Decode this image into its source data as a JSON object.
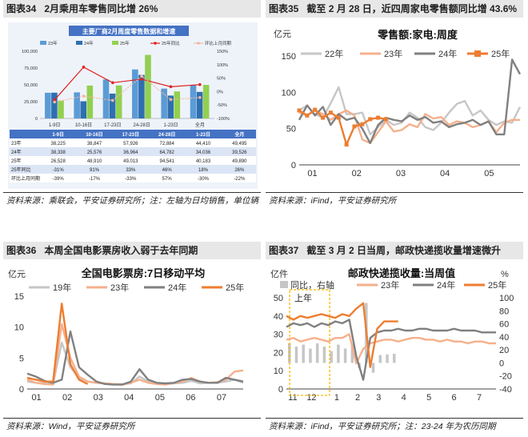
{
  "colors": {
    "y22": "#c6c6c6",
    "y23": "#f5b08c",
    "y24": "#808080",
    "y25": "#ed7d31",
    "y19": "#c6c6c6",
    "bar23": "#5b9bd5",
    "bar24": "#2f6fb0",
    "bar25": "#92d050",
    "line25": "#e02020",
    "lineHH": "#f2b8a2"
  },
  "panel34": {
    "num": "图表34",
    "title": "2月乘用车零售同比增 26%",
    "source": "资料来源：乘联会，平安证券研究所；注：左轴为日均销售，单位辆",
    "chart_title": "主要厂商2月周度零售数据和增速",
    "legend": [
      "23年",
      "24年",
      "25年",
      "25年同比",
      "环比上月同期"
    ],
    "table": {
      "columns": [
        "",
        "1-9日",
        "10-16日",
        "17-23日",
        "24-28日",
        "1-23日",
        "全月"
      ],
      "rows": [
        [
          "23年",
          "38,225",
          "38,847",
          "57,926",
          "72,884",
          "44,410",
          "49,495"
        ],
        [
          "24年",
          "38,338",
          "25,576",
          "36,964",
          "64,782",
          "34,036",
          "39,526"
        ],
        [
          "25年",
          "26,528",
          "48,910",
          "49,013",
          "94,541",
          "40,183",
          "49,890"
        ],
        [
          "25年同比",
          "-31%",
          "91%",
          "33%",
          "46%",
          "18%",
          "26%"
        ],
        [
          "环比上月同期",
          "-39%",
          "-17%",
          "-33%",
          "57%",
          "-30%",
          "-22%"
        ]
      ]
    },
    "chart_data": {
      "type": "bar",
      "title": "主要厂商2月周度零售数据和增速",
      "categories": [
        "1-9日",
        "10-16日",
        "17-23日",
        "24-28日",
        "1-23日",
        "全月"
      ],
      "series": [
        {
          "name": "23年",
          "values": [
            38225,
            38847,
            57926,
            72884,
            44410,
            49495
          ]
        },
        {
          "name": "24年",
          "values": [
            38338,
            25576,
            36964,
            64782,
            34036,
            39526
          ]
        },
        {
          "name": "25年",
          "values": [
            26528,
            48910,
            49013,
            94541,
            40183,
            49890
          ]
        },
        {
          "name": "25年同比",
          "axis": "right",
          "values": [
            -31,
            91,
            33,
            46,
            18,
            26
          ]
        },
        {
          "name": "环比上月同期",
          "axis": "right",
          "values": [
            -39,
            -17,
            -33,
            57,
            -30,
            -22
          ]
        }
      ],
      "ylim": [
        0,
        100000
      ],
      "yticks": [
        "0",
        "25,000",
        "50,000",
        "75,000",
        "100,000"
      ],
      "y2lim": [
        -100,
        150
      ],
      "y2ticks": [
        "-100%",
        "-50%",
        "0%",
        "50%",
        "100%",
        "150%"
      ]
    }
  },
  "panel35": {
    "num": "图表35",
    "title": "截至 2 月 28 日，近四周家电零售额同比增 43.6%",
    "source": "资料来源：iFind，平安证券研究所",
    "chart_data": {
      "type": "line",
      "title": "零售额:家电:周度",
      "ylabel": "亿元",
      "ylim": [
        0,
        150
      ],
      "yticks": [
        "0",
        "50",
        "100",
        "150"
      ],
      "xticks": [
        "01",
        "02",
        "03",
        "04",
        "05"
      ],
      "series": [
        {
          "name": "22年",
          "values": [
            75,
            82,
            70,
            65,
            85,
            107,
            70,
            70,
            72,
            42,
            52,
            62,
            55,
            58,
            72,
            65,
            52,
            48,
            58,
            72,
            84,
            88,
            68,
            75,
            62,
            55,
            60,
            58,
            80
          ]
        },
        {
          "name": "23年",
          "values": [
            72,
            68,
            75,
            70,
            62,
            70,
            75,
            68,
            35,
            30,
            45,
            60,
            46,
            48,
            56,
            52,
            70,
            64,
            66,
            55,
            60,
            58,
            52,
            55,
            60,
            45,
            58,
            62,
            62
          ]
        },
        {
          "name": "24年",
          "values": [
            62,
            82,
            68,
            80,
            55,
            70,
            62,
            65,
            50,
            30,
            55,
            65,
            62,
            60,
            68,
            62,
            66,
            58,
            60,
            52,
            56,
            58,
            62,
            55,
            60,
            42,
            42,
            145,
            125
          ]
        },
        {
          "name": "25年",
          "values": [
            75,
            68,
            76,
            65,
            72,
            65,
            28,
            53,
            56,
            63,
            65,
            63
          ]
        }
      ]
    }
  },
  "panel36": {
    "num": "图表36",
    "title": "本周全国电影票房收入弱于去年同期",
    "source": "资料来源：Wind，平安证券研究所",
    "chart_data": {
      "type": "line",
      "title": "全国电影票房:7日移动平均",
      "ylabel": "亿元",
      "ylim": [
        0,
        15
      ],
      "yticks": [
        "0",
        "5",
        "10",
        "15"
      ],
      "xticks": [
        "01",
        "02",
        "03",
        "04",
        "05",
        "06",
        "07"
      ],
      "series": [
        {
          "name": "19年",
          "values": [
            1.2,
            1.0,
            0.9,
            0.8,
            7.5,
            3.5,
            1.8,
            1.2,
            1.0,
            0.9,
            0.8,
            0.8,
            0.9,
            2.0,
            1.2,
            0.9,
            0.8,
            0.9,
            1.0,
            1.3,
            0.9,
            1.0,
            1.0,
            1.2,
            1.5,
            1.0
          ]
        },
        {
          "name": "23年",
          "values": [
            1.5,
            1.0,
            0.8,
            0.7,
            10.5,
            5.0,
            2.0,
            1.2,
            1.0,
            0.9,
            0.8,
            0.7,
            1.0,
            1.5,
            1.0,
            0.8,
            0.7,
            1.0,
            1.2,
            1.8,
            1.2,
            1.0,
            1.1,
            1.5,
            2.8,
            3.0
          ]
        },
        {
          "name": "24年",
          "values": [
            2.5,
            2.0,
            1.3,
            1.0,
            1.5,
            9.3,
            3.5,
            2.3,
            1.2,
            0.8,
            0.7,
            0.7,
            1.2,
            3.2,
            1.5,
            1.0,
            0.9,
            1.0,
            1.5,
            1.6,
            1.2,
            1.0,
            1.0,
            1.8,
            1.5,
            1.2
          ]
        },
        {
          "name": "25年",
          "values": [
            1.8,
            1.5,
            1.2,
            1.2,
            13.8,
            4.0,
            1.5,
            0.8
          ]
        }
      ]
    }
  },
  "panel37": {
    "num": "图表37",
    "title": "截至 3 月 2 日当周，邮政快递揽收量增速微升",
    "source": "资料来源：iFind，平安证券研究所；注：23-24 年为农历同期",
    "annotation": "上年",
    "chart_data": {
      "type": "line",
      "title": "邮政快递揽收量:当周值",
      "ylabel": "亿件",
      "y2label": "%",
      "ylim": [
        0,
        50
      ],
      "yticks": [
        "0",
        "10",
        "20",
        "30",
        "40",
        "50"
      ],
      "y2lim": [
        -40,
        100
      ],
      "y2ticks": [
        "-40",
        "-20",
        "0",
        "20",
        "40",
        "60",
        "80",
        "100"
      ],
      "xticks": [
        "11",
        "12",
        "1",
        "2",
        "3",
        "4",
        "5",
        "6",
        "7"
      ],
      "series": [
        {
          "name": "同比，右轴",
          "type": "bar",
          "axis": "right",
          "values": [
            30,
            25,
            28,
            22,
            30,
            25,
            18,
            28,
            22,
            30,
            -8,
            92,
            -15,
            12,
            13,
            14
          ]
        },
        {
          "name": "23年",
          "values": [
            27,
            28,
            26,
            27,
            28,
            27,
            26,
            28,
            28,
            30,
            14,
            22,
            25,
            26,
            27,
            27,
            26,
            27,
            28,
            28,
            27,
            27,
            26,
            27,
            26,
            26,
            25,
            26,
            26,
            25,
            25
          ]
        },
        {
          "name": "24年",
          "values": [
            34,
            36,
            35,
            36,
            34,
            36,
            35,
            37,
            36,
            38,
            18,
            5,
            28,
            31,
            32,
            32,
            33,
            32,
            32,
            33,
            33,
            32,
            32,
            32,
            33,
            32,
            32,
            32,
            31,
            31,
            31
          ]
        },
        {
          "name": "25年",
          "values": [
            40,
            38,
            40,
            39,
            40,
            41,
            40,
            39,
            41,
            40,
            44,
            47,
            12,
            33,
            37,
            37,
            37
          ]
        }
      ]
    }
  }
}
